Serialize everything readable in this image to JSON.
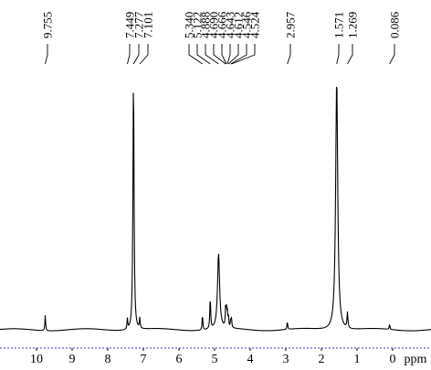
{
  "chart_data": {
    "type": "line",
    "title": "",
    "xlabel": "ppm",
    "ylabel": "",
    "x_axis_reversed": true,
    "xlim": [
      10.7,
      -0.9
    ],
    "grid": false,
    "baseline_dashed_color": "#3333cc",
    "line_color": "#000000",
    "x_ticks": [
      10,
      9,
      8,
      7,
      6,
      5,
      4,
      3,
      2,
      1,
      0
    ],
    "x_tick_labels": [
      "10",
      "9",
      "8",
      "7",
      "6",
      "5",
      "4",
      "3",
      "2",
      "1",
      "0"
    ],
    "peak_labels": [
      "9.755",
      "7.449",
      "7.277",
      "7.101",
      "5.340",
      "5.122",
      "4.888",
      "4.690",
      "4.666",
      "4.643",
      "4.612",
      "4.546",
      "4.524",
      "2.957",
      "1.571",
      "1.269",
      "0.086"
    ],
    "peaks": [
      {
        "ppm": 9.755,
        "height": 0.06,
        "width": 0.012
      },
      {
        "ppm": 7.449,
        "height": 0.04,
        "width": 0.012
      },
      {
        "ppm": 7.277,
        "height": 0.98,
        "width": 0.018
      },
      {
        "ppm": 7.101,
        "height": 0.04,
        "width": 0.012
      },
      {
        "ppm": 5.34,
        "height": 0.06,
        "width": 0.012
      },
      {
        "ppm": 5.122,
        "height": 0.12,
        "width": 0.014
      },
      {
        "ppm": 4.888,
        "height": 0.29,
        "width": 0.035
      },
      {
        "ppm": 4.69,
        "height": 0.07,
        "width": 0.012
      },
      {
        "ppm": 4.666,
        "height": 0.06,
        "width": 0.012
      },
      {
        "ppm": 4.643,
        "height": 0.05,
        "width": 0.012
      },
      {
        "ppm": 4.612,
        "height": 0.04,
        "width": 0.012
      },
      {
        "ppm": 4.546,
        "height": 0.03,
        "width": 0.012
      },
      {
        "ppm": 4.524,
        "height": 0.03,
        "width": 0.012
      },
      {
        "ppm": 2.957,
        "height": 0.03,
        "width": 0.012
      },
      {
        "ppm": 1.571,
        "height": 0.96,
        "width": 0.035
      },
      {
        "ppm": 1.269,
        "height": 0.06,
        "width": 0.015
      },
      {
        "ppm": 0.086,
        "height": 0.02,
        "width": 0.012
      }
    ]
  }
}
